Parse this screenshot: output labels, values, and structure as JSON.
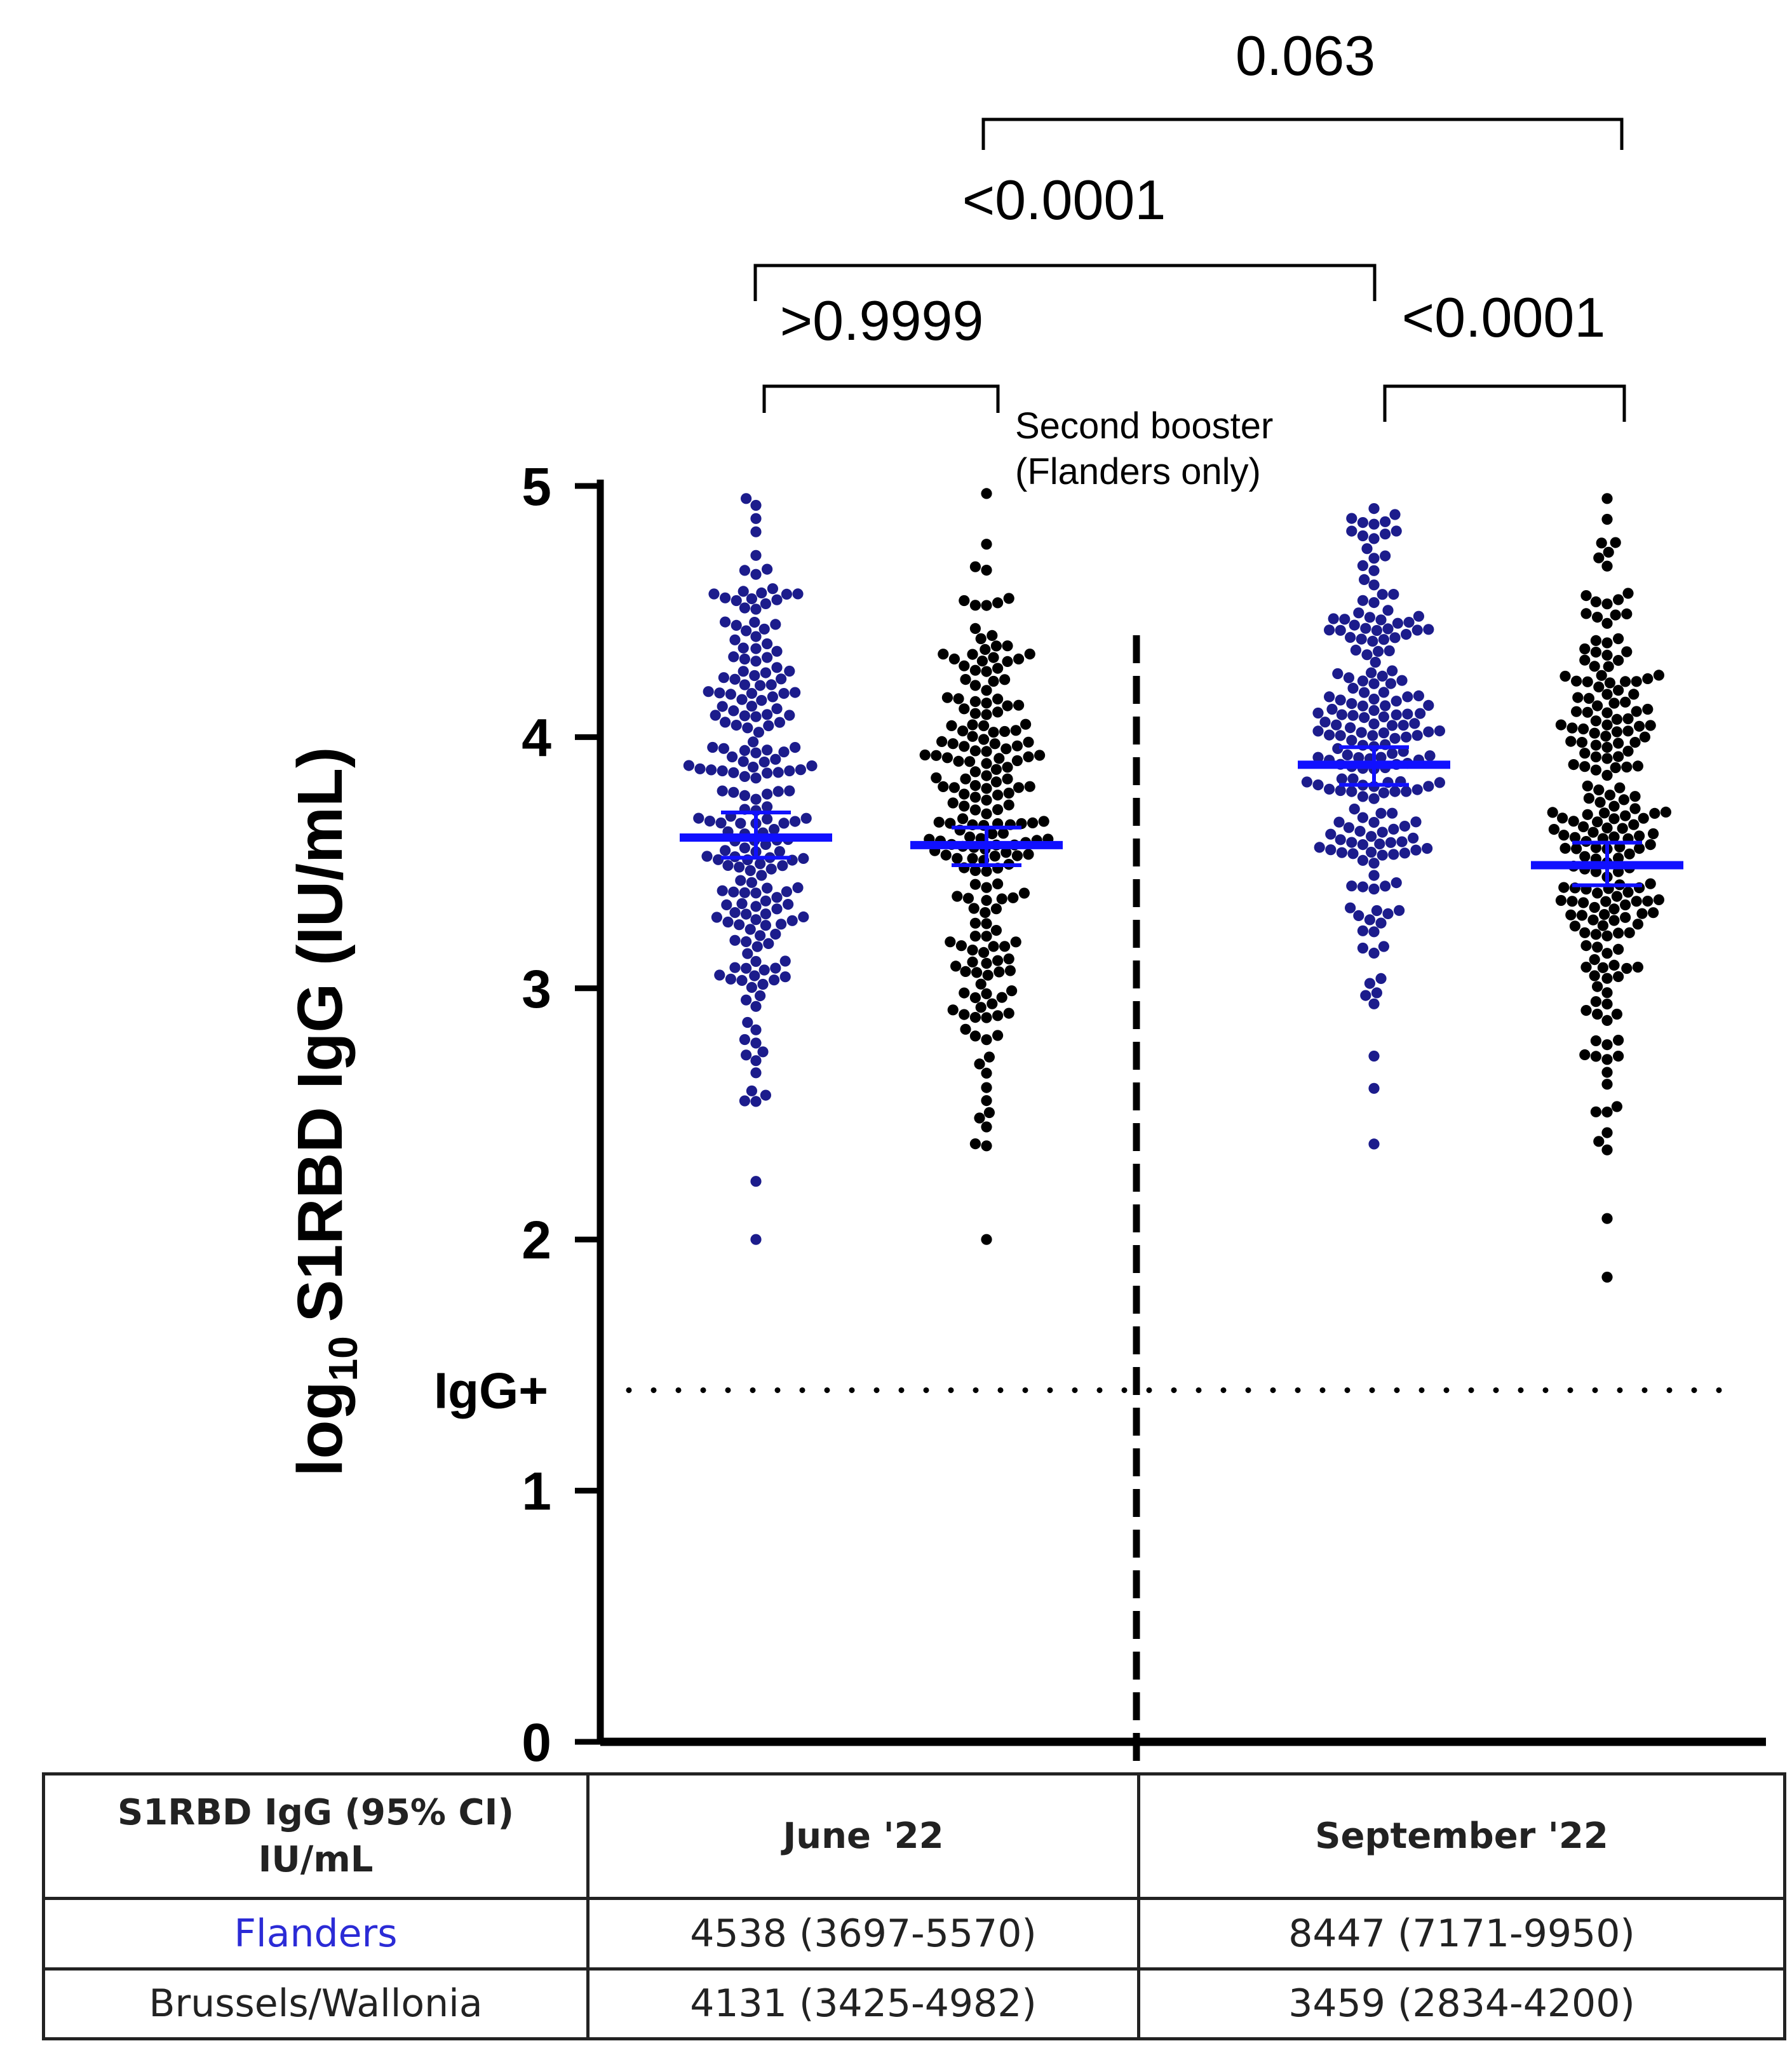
{
  "chart_data": {
    "type": "scatter",
    "subtype": "dot-plot with geometric mean and 95% CI",
    "ylabel_prefix": "log",
    "ylabel_subscript": "10",
    "ylabel_main": "S1RBD IgG (IU/mL)",
    "ylim": [
      0,
      5
    ],
    "yticks": [
      0,
      1,
      2,
      3,
      4,
      5
    ],
    "threshold": {
      "label": "IgG+",
      "value": 1.4
    },
    "booster_annotation": {
      "line1": "Second booster",
      "line2": "(Flanders only)"
    },
    "groups": [
      {
        "name": "Flanders June '22",
        "color": "#1c1c8c",
        "mean": 3.6,
        "ci": [
          3.52,
          3.7
        ],
        "min": 2.0,
        "max": 4.95,
        "n": 210
      },
      {
        "name": "Brussels/Wallonia June '22",
        "color": "#000000",
        "mean": 3.57,
        "ci": [
          3.49,
          3.64
        ],
        "min": 2.0,
        "max": 4.97,
        "n": 200
      },
      {
        "name": "Flanders September '22",
        "color": "#1c1c8c",
        "mean": 3.89,
        "ci": [
          3.81,
          3.96
        ],
        "min": 2.38,
        "max": 4.91,
        "n": 200
      },
      {
        "name": "Brussels/Wallonia September '22",
        "color": "#000000",
        "mean": 3.49,
        "ci": [
          3.41,
          3.58
        ],
        "min": 1.85,
        "max": 4.95,
        "n": 210
      }
    ],
    "comparisons": [
      {
        "from": 1,
        "to": 2,
        "p": ">0.9999"
      },
      {
        "from": 3,
        "to": 4,
        "p": "<0.0001"
      },
      {
        "from": 1,
        "to": 3,
        "p": "<0.0001"
      },
      {
        "from": 2,
        "to": 4,
        "p": "0.063"
      }
    ]
  },
  "table": {
    "header": {
      "label_line1": "S1RBD IgG (95% CI)",
      "label_line2": "IU/mL",
      "col1": "June '22",
      "col2": "September '22"
    },
    "rows": [
      {
        "name": "Flanders",
        "june": "4538 (3697-5570)",
        "september": "8447 (7171-9950)"
      },
      {
        "name": "Brussels/Wallonia",
        "june": "4131 (3425-4982)",
        "september": "3459 (2834-4200)"
      }
    ]
  },
  "colors": {
    "flanders": "#1c1c8c",
    "brussels_wallonia": "#000000",
    "mean_line": "#1010ff",
    "flanders_label": "#2b2bd6"
  }
}
